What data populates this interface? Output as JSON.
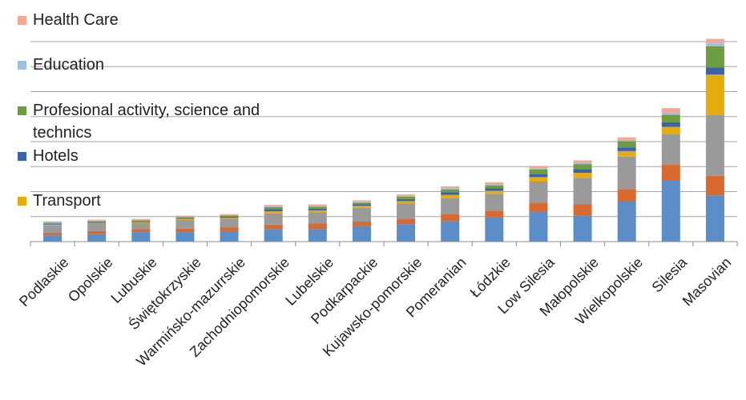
{
  "chart_data": {
    "type": "bar",
    "stacked": true,
    "grid": true,
    "legend_position": "top-left",
    "categories": [
      "Podlaskie",
      "Opolskie",
      "Lubuskie",
      "Świętokrzyskie",
      "Warmińsko-mazurrskie",
      "Zachodniopomorskie",
      "Lubelskie",
      "Podkarpackie",
      "Kujawsko-pomorskie",
      "Pomeranian",
      "Łódzkie",
      "Low Silesia",
      "Małopolskie",
      "Wielkopolskie",
      "Silesia",
      "Masovian"
    ],
    "ylim": [
      0,
      8
    ],
    "series": [
      {
        "name": "",
        "color": "#5b8ec8",
        "values": [
          0.25,
          0.3,
          0.38,
          0.38,
          0.4,
          0.5,
          0.5,
          0.62,
          0.7,
          0.82,
          0.98,
          1.2,
          1.05,
          1.6,
          2.45,
          1.85
        ]
      },
      {
        "name": "",
        "color": "#d9692e",
        "values": [
          0.1,
          0.12,
          0.12,
          0.14,
          0.16,
          0.18,
          0.22,
          0.18,
          0.22,
          0.28,
          0.25,
          0.35,
          0.45,
          0.5,
          0.62,
          0.78
        ]
      },
      {
        "name": "",
        "color": "#9a9a9a",
        "values": [
          0.3,
          0.3,
          0.25,
          0.35,
          0.35,
          0.45,
          0.45,
          0.55,
          0.6,
          0.65,
          0.68,
          0.85,
          1.05,
          1.3,
          1.22,
          2.45
        ]
      },
      {
        "name": "Transport",
        "color": "#e6ac0c",
        "values": [
          0.03,
          0.03,
          0.03,
          0.04,
          0.04,
          0.08,
          0.08,
          0.08,
          0.1,
          0.12,
          0.12,
          0.18,
          0.2,
          0.22,
          0.3,
          1.6
        ]
      },
      {
        "name": "Hotels",
        "color": "#3a62ad",
        "values": [
          0.03,
          0.03,
          0.03,
          0.03,
          0.04,
          0.07,
          0.07,
          0.06,
          0.08,
          0.1,
          0.1,
          0.12,
          0.15,
          0.15,
          0.18,
          0.28
        ]
      },
      {
        "name": "Profesional activity, science and technics",
        "color": "#6c9e3f",
        "values": [
          0.04,
          0.04,
          0.04,
          0.04,
          0.05,
          0.1,
          0.08,
          0.07,
          0.1,
          0.12,
          0.12,
          0.18,
          0.2,
          0.25,
          0.3,
          0.85
        ]
      },
      {
        "name": "Education",
        "color": "#9dbfe2",
        "values": [
          0.02,
          0.02,
          0.02,
          0.02,
          0.02,
          0.03,
          0.03,
          0.03,
          0.03,
          0.04,
          0.04,
          0.05,
          0.05,
          0.05,
          0.05,
          0.12
        ]
      },
      {
        "name": "Health Care",
        "color": "#f2a895",
        "values": [
          0.04,
          0.04,
          0.04,
          0.04,
          0.04,
          0.06,
          0.06,
          0.06,
          0.06,
          0.08,
          0.08,
          0.1,
          0.1,
          0.1,
          0.22,
          0.18
        ]
      }
    ],
    "legend": [
      {
        "label": "Health Care",
        "color": "#f2a895"
      },
      {
        "label": "Education",
        "color": "#9dbfe2"
      },
      {
        "label": "Profesional activity, science and technics",
        "color": "#6c9e3f"
      },
      {
        "label": "Hotels",
        "color": "#3a62ad"
      },
      {
        "label": "Transport",
        "color": "#e6ac0c"
      }
    ]
  }
}
